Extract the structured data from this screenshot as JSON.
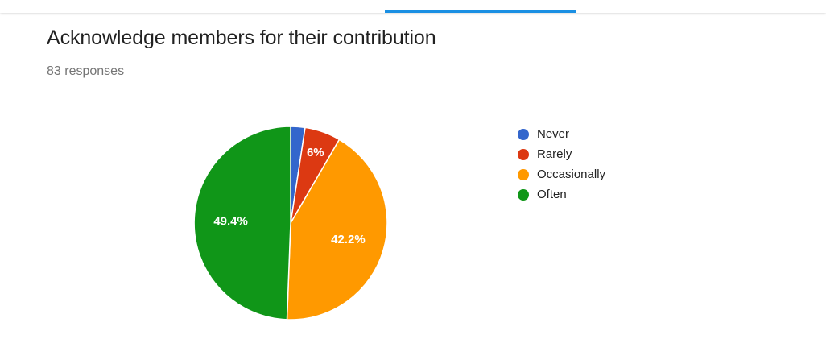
{
  "header": {
    "tab_indicator_color": "#1a8fe3"
  },
  "question": {
    "title": "Acknowledge members for their contribution",
    "responses": "83 responses"
  },
  "chart_data": {
    "type": "pie",
    "title": "Acknowledge members for their contribution",
    "subtitle": "83 responses",
    "legend_position": "right",
    "categories": [
      "Never",
      "Rarely",
      "Occasionally",
      "Often"
    ],
    "values": [
      2.4,
      6.0,
      42.2,
      49.4
    ],
    "labels": [
      "",
      "6%",
      "42.2%",
      "49.4%"
    ],
    "colors": [
      "#3366cc",
      "#dc3912",
      "#ff9900",
      "#109618"
    ],
    "start_angle_deg": 90,
    "direction": "clockwise"
  }
}
